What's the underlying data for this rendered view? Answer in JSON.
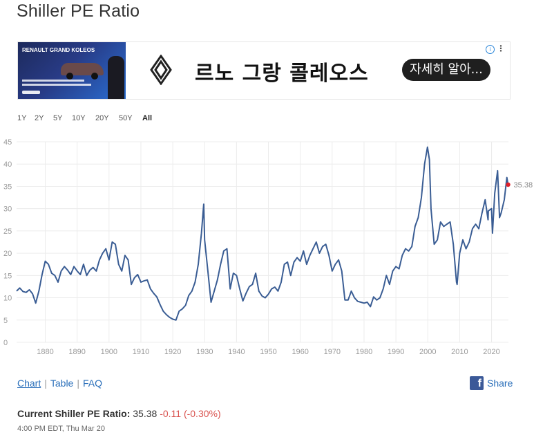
{
  "page": {
    "title": "Shiller PE Ratio"
  },
  "ad": {
    "thumb_title": "RENAULT GRAND KOLEOS",
    "text": "르노 그랑 콜레오스",
    "button": "자세히 알아...",
    "info": "i",
    "more": "⋮"
  },
  "ranges": [
    {
      "label": "1Y",
      "active": false
    },
    {
      "label": "2Y",
      "active": false
    },
    {
      "label": "5Y",
      "active": false
    },
    {
      "label": "10Y",
      "active": false
    },
    {
      "label": "20Y",
      "active": false
    },
    {
      "label": "50Y",
      "active": false
    },
    {
      "label": "All",
      "active": true
    }
  ],
  "chart_data": {
    "type": "line",
    "title": "",
    "xlabel": "",
    "ylabel": "",
    "xlim": [
      1871,
      2025.3
    ],
    "ylim": [
      0,
      45
    ],
    "grid": true,
    "y_ticks": [
      0,
      5,
      10,
      15,
      20,
      25,
      30,
      35,
      40,
      45
    ],
    "x_ticks": [
      1880,
      1890,
      1900,
      1910,
      1920,
      1930,
      1940,
      1950,
      1960,
      1970,
      1980,
      1990,
      2000,
      2010,
      2020
    ],
    "end_marker": {
      "x": 2025.2,
      "y": 35.38,
      "label": "35.38",
      "color": "#e0202a"
    },
    "series": [
      {
        "color": "#3a5d94",
        "x": [
          1871,
          1872,
          1873,
          1874,
          1875,
          1876,
          1877,
          1878,
          1879,
          1880,
          1881,
          1882,
          1883,
          1884,
          1885,
          1886,
          1887,
          1888,
          1889,
          1890,
          1891,
          1892,
          1893,
          1894,
          1895,
          1896,
          1897,
          1898,
          1899,
          1900,
          1901,
          1902,
          1903,
          1904,
          1905,
          1906,
          1907,
          1908,
          1909,
          1910,
          1911,
          1912,
          1913,
          1914,
          1915,
          1916,
          1917,
          1918,
          1919,
          1920,
          1921,
          1922,
          1923,
          1924,
          1925,
          1926,
          1927,
          1928,
          1929,
          1929.7,
          1930,
          1931,
          1932,
          1933,
          1934,
          1935,
          1936,
          1937,
          1938,
          1939,
          1940,
          1941,
          1942,
          1943,
          1944,
          1945,
          1946,
          1947,
          1948,
          1949,
          1950,
          1951,
          1952,
          1953,
          1954,
          1955,
          1956,
          1957,
          1958,
          1959,
          1960,
          1961,
          1962,
          1963,
          1964,
          1965,
          1966,
          1967,
          1968,
          1969,
          1970,
          1971,
          1972,
          1973,
          1974,
          1975,
          1976,
          1977,
          1978,
          1979,
          1980,
          1981,
          1982,
          1983,
          1984,
          1985,
          1986,
          1987,
          1988,
          1989,
          1990,
          1991,
          1992,
          1993,
          1994,
          1995,
          1996,
          1997,
          1998,
          1999,
          1999.9,
          2000.5,
          2001,
          2002,
          2003,
          2004,
          2005,
          2006,
          2007,
          2008,
          2009,
          2009.2,
          2010,
          2011,
          2012,
          2013,
          2014,
          2015,
          2016,
          2017,
          2018,
          2018.9,
          2019,
          2020,
          2020.3,
          2021,
          2021.9,
          2022.5,
          2023,
          2024,
          2024.8,
          2025.2
        ],
        "y": [
          11.5,
          12.2,
          11.4,
          11.2,
          11.8,
          10.9,
          8.8,
          11.5,
          15.2,
          18.2,
          17.5,
          15.5,
          15.0,
          13.5,
          16.0,
          17.0,
          16.2,
          15.2,
          17.0,
          16.0,
          15.2,
          17.5,
          15.0,
          16.2,
          16.8,
          16.0,
          18.5,
          20.0,
          21.0,
          18.5,
          22.5,
          22.0,
          17.5,
          16.0,
          19.5,
          18.5,
          13.0,
          14.5,
          15.2,
          13.5,
          13.8,
          14.0,
          12.0,
          11.0,
          10.2,
          8.5,
          7.0,
          6.2,
          5.6,
          5.2,
          5.0,
          7.0,
          7.5,
          8.3,
          10.5,
          11.5,
          13.5,
          17.5,
          24.5,
          31.0,
          23.0,
          16.0,
          9.0,
          11.5,
          14.0,
          17.5,
          20.5,
          21.0,
          12.0,
          15.5,
          15.0,
          12.0,
          9.3,
          11.0,
          12.5,
          13.0,
          15.5,
          11.5,
          10.4,
          10.0,
          10.8,
          12.0,
          12.4,
          11.5,
          13.5,
          17.5,
          18.0,
          15.0,
          18.0,
          19.0,
          18.2,
          20.5,
          17.5,
          19.5,
          21.0,
          22.5,
          20.0,
          21.5,
          22.0,
          19.5,
          16.0,
          17.5,
          18.5,
          16.0,
          9.5,
          9.5,
          11.5,
          10.0,
          9.2,
          9.0,
          8.8,
          9.0,
          8.0,
          10.2,
          9.5,
          10.0,
          12.0,
          15.0,
          13.0,
          16.0,
          17.0,
          16.5,
          19.5,
          21.0,
          20.5,
          21.5,
          26.0,
          28.0,
          32.5,
          40.0,
          43.8,
          41.0,
          30.0,
          22.0,
          23.0,
          27.0,
          26.0,
          26.5,
          27.0,
          22.0,
          13.5,
          13.0,
          20.0,
          23.0,
          21.0,
          22.5,
          25.5,
          26.5,
          25.5,
          29.0,
          32.0,
          27.5,
          29.5,
          30.0,
          24.5,
          33.5,
          38.5,
          28.0,
          29.0,
          32.0,
          37.0,
          35.38
        ]
      }
    ]
  },
  "view_tabs": {
    "chart": "Chart",
    "table": "Table",
    "faq": "FAQ",
    "sep": "|"
  },
  "share": {
    "icon": "f",
    "label": "Share"
  },
  "current": {
    "label": "Current Shiller PE Ratio:",
    "value": "35.38",
    "change": "-0.11 (-0.30%)",
    "timestamp": "4:00 PM EDT, Thu Mar 20"
  }
}
